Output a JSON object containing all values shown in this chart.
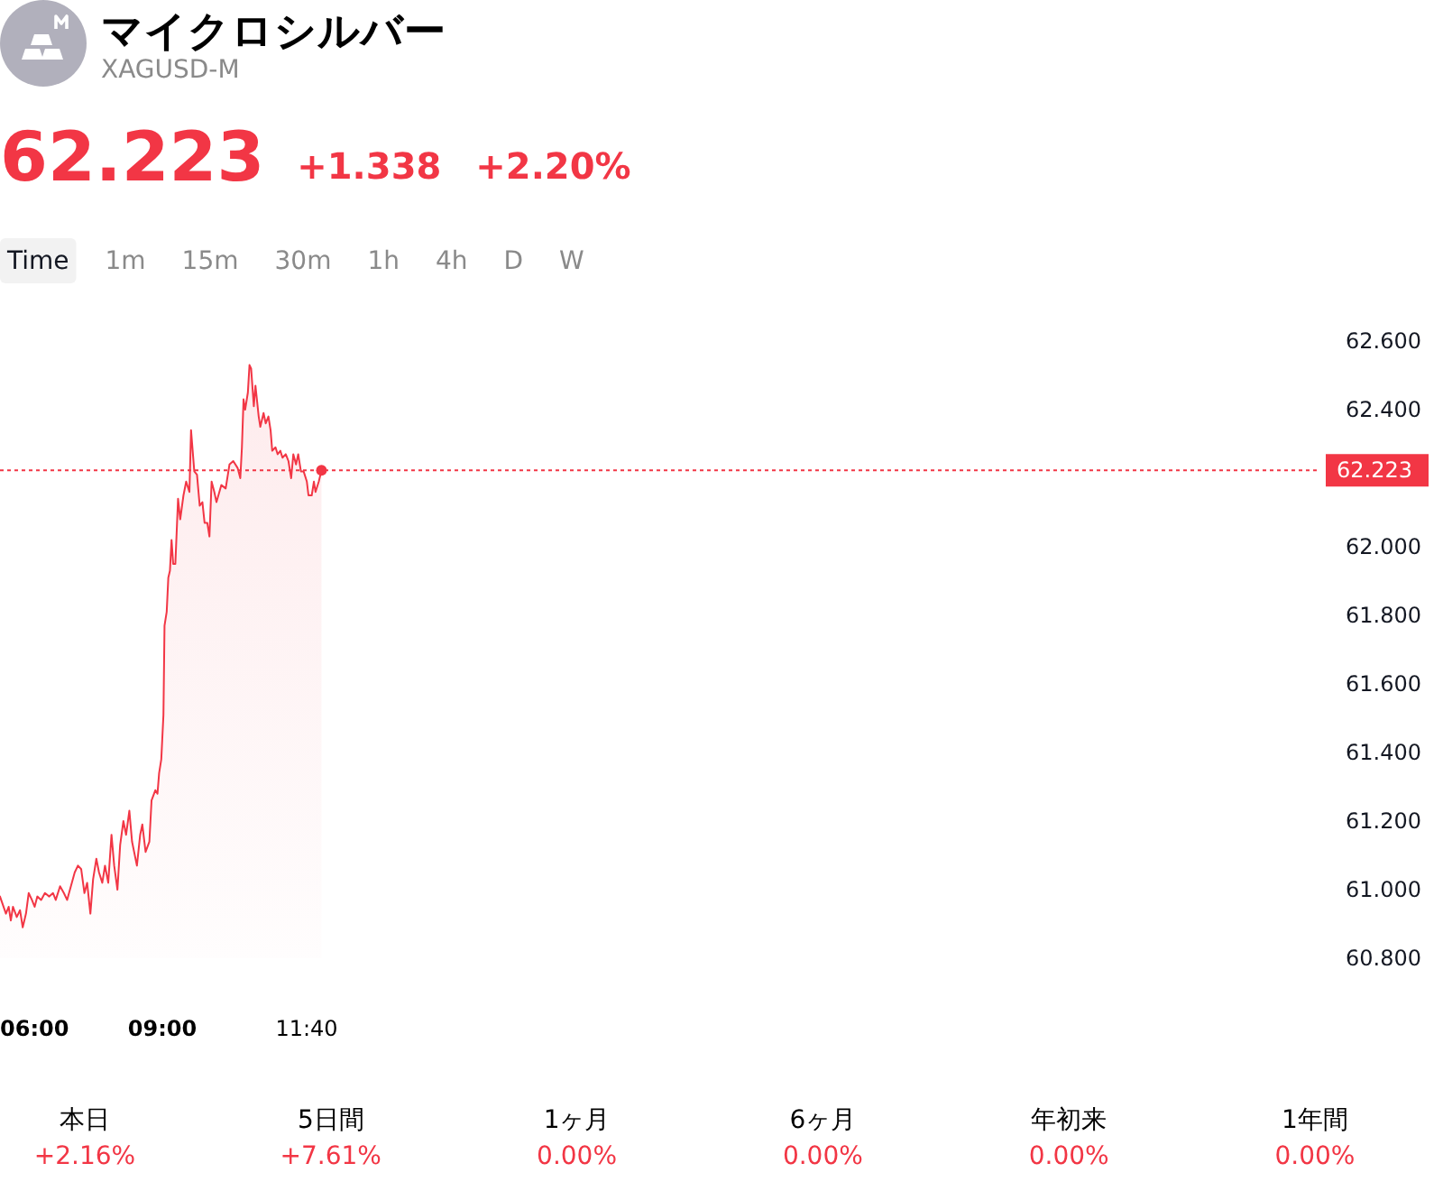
{
  "chart_data": {
    "type": "area",
    "title": "マイクロシルバー",
    "subtitle": "XAGUSD-M",
    "annotations": [
      "62.223",
      "+1.338",
      "+2.20%",
      "Time",
      "1m",
      "15m",
      "30m",
      "1h",
      "4h",
      "D",
      "W",
      "本日",
      "+2.16%",
      "5日間",
      "+7.61%",
      "1ヶ月",
      "0.00%",
      "6ヶ月",
      "0.00%",
      "年初来",
      "0.00%",
      "1年間",
      "0.00%"
    ],
    "x": [
      6.0,
      6.11,
      6.16,
      6.2,
      6.24,
      6.31,
      6.37,
      6.42,
      6.48,
      6.53,
      6.59,
      6.64,
      6.69,
      6.76,
      6.83,
      6.91,
      6.98,
      7.03,
      7.11,
      7.18,
      7.24,
      7.31,
      7.38,
      7.44,
      7.5,
      7.56,
      7.61,
      7.67,
      7.72,
      7.78,
      7.83,
      7.89,
      7.94,
      8.0,
      8.06,
      8.11,
      8.17,
      8.22,
      8.28,
      8.33,
      8.39,
      8.44,
      8.53,
      8.59,
      8.63,
      8.69,
      8.76,
      8.8,
      8.87,
      8.91,
      8.94,
      8.98,
      9.02,
      9.04,
      9.08,
      9.11,
      9.14,
      9.17,
      9.2,
      9.24,
      9.29,
      9.33,
      9.39,
      9.44,
      9.5,
      9.53,
      9.59,
      9.64,
      9.69,
      9.74,
      9.78,
      9.83,
      9.87,
      9.91,
      9.96,
      10.0,
      10.09,
      10.17,
      10.24,
      10.31,
      10.39,
      10.44,
      10.47,
      10.5,
      10.53,
      10.58,
      10.61,
      10.64,
      10.69,
      10.72,
      10.78,
      10.81,
      10.87,
      10.91,
      10.96,
      11.0,
      11.03,
      11.09,
      11.13,
      11.18,
      11.22,
      11.28,
      11.33,
      11.38,
      11.42,
      11.47,
      11.51,
      11.56,
      11.61,
      11.67,
      11.7,
      11.76,
      11.8,
      11.83,
      11.89,
      11.94
    ],
    "series": [
      {
        "color": "#f23645",
        "values": [
          60.98,
          60.93,
          60.95,
          60.91,
          60.95,
          60.92,
          60.94,
          60.89,
          60.93,
          60.99,
          60.97,
          60.95,
          60.98,
          60.97,
          60.99,
          60.98,
          60.99,
          60.97,
          61.01,
          60.99,
          60.97,
          61.01,
          61.05,
          61.07,
          61.06,
          60.99,
          61.02,
          60.93,
          61.03,
          61.09,
          61.05,
          61.02,
          61.07,
          61.02,
          61.16,
          61.07,
          61.0,
          61.13,
          61.2,
          61.16,
          61.23,
          61.14,
          61.07,
          61.16,
          61.19,
          61.11,
          61.14,
          61.26,
          61.29,
          61.28,
          61.34,
          61.38,
          61.51,
          61.77,
          61.81,
          61.91,
          61.93,
          62.02,
          61.95,
          61.95,
          62.14,
          62.08,
          62.15,
          62.19,
          62.16,
          62.34,
          62.22,
          62.21,
          62.12,
          62.13,
          62.07,
          62.07,
          62.03,
          62.19,
          62.16,
          62.13,
          62.18,
          62.17,
          62.24,
          62.25,
          62.23,
          62.2,
          62.29,
          62.43,
          62.4,
          62.45,
          62.53,
          62.52,
          62.41,
          62.47,
          62.38,
          62.35,
          62.39,
          62.36,
          62.38,
          62.34,
          62.28,
          62.29,
          62.27,
          62.28,
          62.26,
          62.27,
          62.25,
          62.2,
          62.27,
          62.24,
          62.27,
          62.22,
          62.22,
          62.19,
          62.15,
          62.15,
          62.19,
          62.16,
          62.19,
          62.223
        ]
      },
      {
        "type": "scatter",
        "x": [
          11.94
        ],
        "values": [
          62.223
        ],
        "color": "#f23645",
        "marker": "circle"
      }
    ],
    "xlim": [
      6,
      30.33
    ],
    "xticks": [
      {
        "value": 6,
        "label": "06:00"
      },
      {
        "value": 9,
        "label": "09:00"
      },
      {
        "value": 11.667,
        "label": "11:40"
      }
    ],
    "ylim": [
      60.8,
      62.6
    ],
    "yticks": [
      {
        "value": 60.8,
        "label": "60.800"
      },
      {
        "value": 61,
        "label": "61.000"
      },
      {
        "value": 61.2,
        "label": "61.200"
      },
      {
        "value": 61.4,
        "label": "61.400"
      },
      {
        "value": 61.6,
        "label": "61.600"
      },
      {
        "value": 61.8,
        "label": "61.800"
      },
      {
        "value": 62,
        "label": "62.000"
      },
      {
        "value": 62.4,
        "label": "62.400"
      },
      {
        "value": 62.6,
        "label": "62.600"
      }
    ],
    "ref_lines": [
      {
        "axis": "y",
        "value": 62.223,
        "label": "62.223",
        "color": "#f23645",
        "line_style": "dotted"
      }
    ]
  }
}
